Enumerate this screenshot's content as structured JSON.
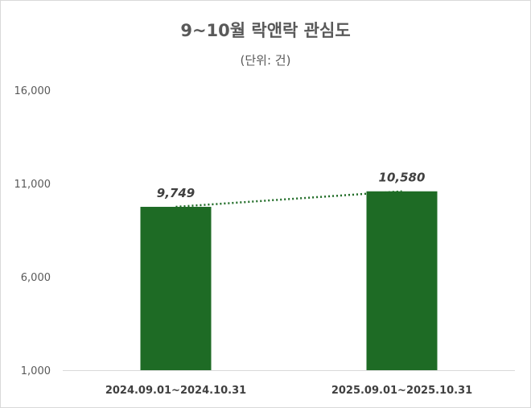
{
  "chart_data": {
    "type": "bar",
    "title": "9~10월 락앤락 관심도",
    "subtitle": "(단위: 건)",
    "categories": [
      "2024.09.01~2024.10.31",
      "2025.09.01~2025.10.31"
    ],
    "values": [
      9749,
      10580
    ],
    "data_labels": [
      "9,749",
      "10,580"
    ],
    "ylim": [
      1000,
      16000
    ],
    "yticks": [
      1000,
      6000,
      11000,
      16000
    ],
    "ytick_labels": [
      "1,000",
      "6,000",
      "11,000",
      "16,000"
    ],
    "trendline": "dotted",
    "grid": false,
    "legend": "none",
    "colors": {
      "bar": "#1e6b25",
      "trend": "#1e6b25",
      "axis": "#d9d9d9"
    }
  }
}
